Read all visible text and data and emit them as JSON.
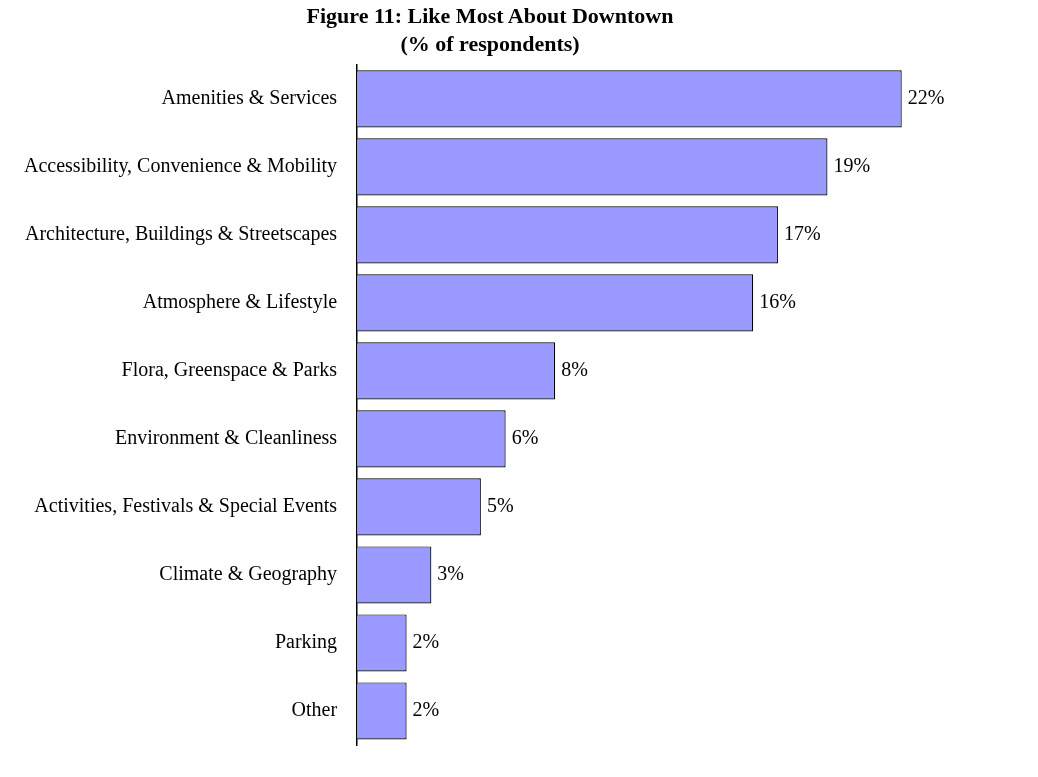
{
  "chart_data": {
    "type": "bar",
    "orientation": "horizontal",
    "title": "Figure 11: Like Most About Downtown",
    "subtitle": "(% of respondents)",
    "categories": [
      "Amenities & Services",
      "Accessibility, Convenience & Mobility",
      "Architecture, Buildings & Streetscapes",
      "Atmosphere & Lifestyle",
      "Flora, Greenspace & Parks",
      "Environment & Cleanliness",
      "Activities, Festivals & Special Events",
      "Climate & Geography",
      "Parking",
      "Other"
    ],
    "values": [
      22,
      19,
      17,
      16,
      8,
      6,
      5,
      3,
      2,
      2
    ],
    "value_labels": [
      "22%",
      "19%",
      "17%",
      "16%",
      "8%",
      "6%",
      "5%",
      "3%",
      "2%",
      "2%"
    ],
    "color": "#9999ff",
    "legend": false
  }
}
